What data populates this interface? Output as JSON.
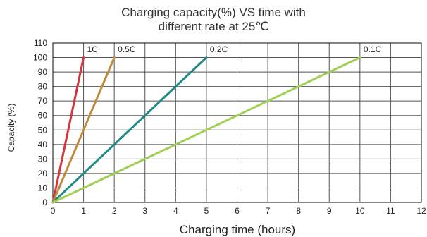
{
  "chart_data": {
    "type": "line",
    "title_line1": "Charging capacity(%) VS time with",
    "title_line2": "different rate at 25℃",
    "xlabel": "Charging time (hours)",
    "ylabel": "Capacity (%)",
    "xlim": [
      0,
      12
    ],
    "ylim": [
      0,
      110
    ],
    "x_ticks": [
      "0",
      "1",
      "2",
      "3",
      "4",
      "5",
      "6",
      "7",
      "8",
      "9",
      "10",
      "11",
      "12"
    ],
    "y_ticks": [
      "0",
      "10",
      "20",
      "30",
      "40",
      "50",
      "60",
      "70",
      "80",
      "90",
      "100",
      "110"
    ],
    "grid": true,
    "series": [
      {
        "name": "1C",
        "color": "#d2363a",
        "points": [
          [
            0,
            0
          ],
          [
            1,
            100
          ]
        ]
      },
      {
        "name": "0.5C",
        "color": "#c08a3e",
        "points": [
          [
            0,
            0
          ],
          [
            2,
            100
          ]
        ]
      },
      {
        "name": "0.2C",
        "color": "#1f8b84",
        "points": [
          [
            0,
            0
          ],
          [
            5,
            100
          ]
        ]
      },
      {
        "name": "0.1C",
        "color": "#9fcf54",
        "points": [
          [
            0,
            0
          ],
          [
            10,
            100
          ]
        ]
      }
    ]
  }
}
